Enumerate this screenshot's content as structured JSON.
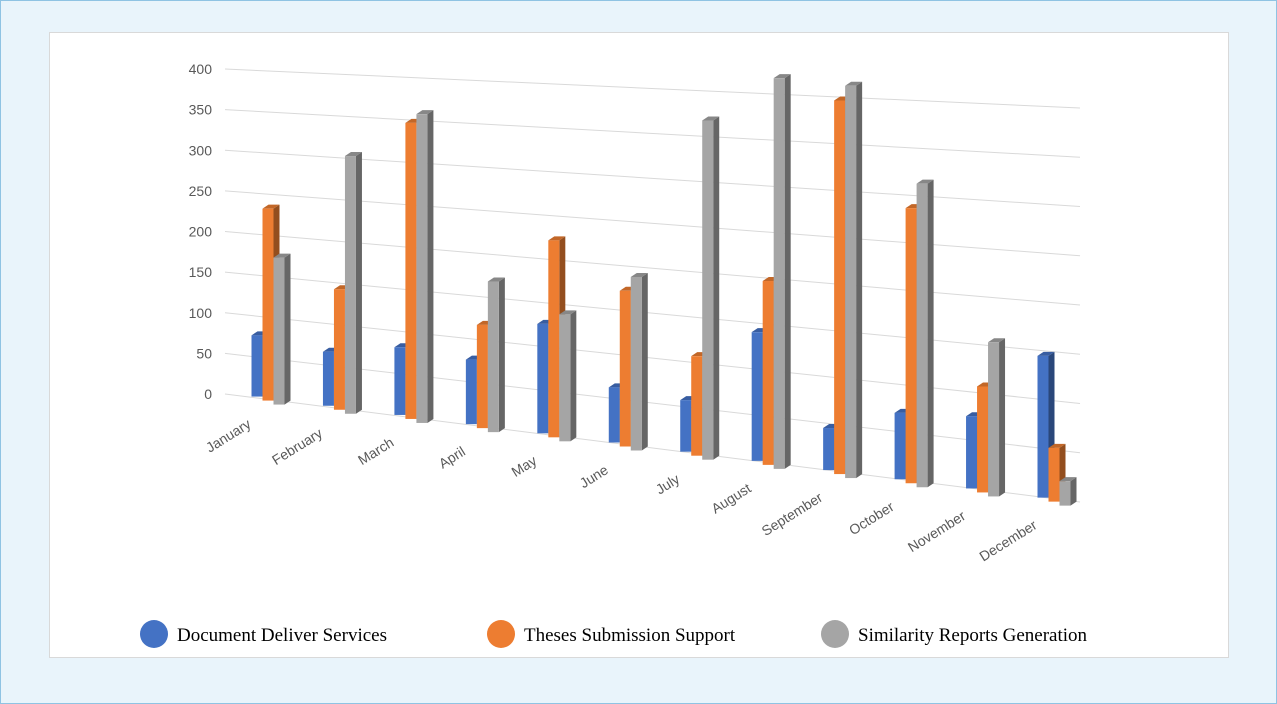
{
  "chart_data": {
    "type": "bar",
    "title": "",
    "xlabel": "",
    "ylabel": "",
    "ylim": [
      0,
      400
    ],
    "yticks": [
      0,
      50,
      100,
      150,
      200,
      250,
      300,
      350,
      400
    ],
    "categories": [
      "January",
      "February",
      "March",
      "April",
      "May",
      "June",
      "July",
      "August",
      "September",
      "October",
      "November",
      "December"
    ],
    "series": [
      {
        "name": "Document Deliver Services",
        "color": "#4472c4",
        "values": [
          75,
          65,
          80,
          75,
          125,
          62,
          57,
          140,
          45,
          70,
          75,
          145
        ]
      },
      {
        "name": "Theses Submission Support",
        "color": "#ed7d31",
        "values": [
          235,
          145,
          350,
          120,
          225,
          175,
          110,
          200,
          400,
          290,
          110,
          55
        ]
      },
      {
        "name": "Similarity Reports Generation",
        "color": "#a5a5a5",
        "values": [
          180,
          310,
          365,
          175,
          145,
          195,
          375,
          425,
          420,
          320,
          160,
          25
        ]
      }
    ],
    "grid": true,
    "legend_position": "bottom",
    "style": "3d-clustered-column"
  }
}
